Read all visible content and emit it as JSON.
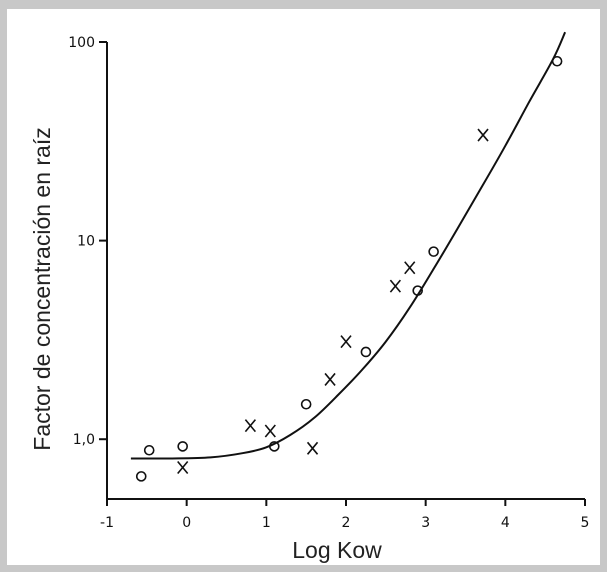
{
  "chart_data": {
    "type": "scatter",
    "xlabel": "Log Kow",
    "ylabel": "Factor de concentración en raíz",
    "xlim": [
      -1,
      5
    ],
    "ylim": [
      0.5,
      100
    ],
    "y_scale": "log",
    "grid": false,
    "x_ticks": [
      "-1",
      "0",
      "1",
      "2",
      "3",
      "4",
      "5"
    ],
    "y_ticks": [
      {
        "value": 1,
        "label": "1,0"
      },
      {
        "value": 10,
        "label": "10"
      },
      {
        "value": 100,
        "label": "100"
      }
    ],
    "series": [
      {
        "marker": "circle",
        "points": [
          {
            "x": -0.57,
            "y": 0.65
          },
          {
            "x": -0.47,
            "y": 0.88
          },
          {
            "x": -0.05,
            "y": 0.92
          },
          {
            "x": 1.1,
            "y": 0.92
          },
          {
            "x": 1.5,
            "y": 1.5
          },
          {
            "x": 2.25,
            "y": 2.75
          },
          {
            "x": 2.9,
            "y": 5.6
          },
          {
            "x": 3.1,
            "y": 8.8
          },
          {
            "x": 4.65,
            "y": 80
          }
        ]
      },
      {
        "marker": "cross",
        "points": [
          {
            "x": -0.05,
            "y": 0.72
          },
          {
            "x": 0.8,
            "y": 1.17
          },
          {
            "x": 1.05,
            "y": 1.1
          },
          {
            "x": 1.58,
            "y": 0.9
          },
          {
            "x": 1.8,
            "y": 2.0
          },
          {
            "x": 2.0,
            "y": 3.1
          },
          {
            "x": 2.62,
            "y": 5.9
          },
          {
            "x": 2.8,
            "y": 7.3
          },
          {
            "x": 3.72,
            "y": 34
          }
        ]
      }
    ],
    "fit_curve": [
      {
        "x": -0.7,
        "y": 0.8
      },
      {
        "x": -0.2,
        "y": 0.8
      },
      {
        "x": 0.3,
        "y": 0.81
      },
      {
        "x": 0.7,
        "y": 0.85
      },
      {
        "x": 1.0,
        "y": 0.91
      },
      {
        "x": 1.3,
        "y": 1.05
      },
      {
        "x": 1.6,
        "y": 1.28
      },
      {
        "x": 1.9,
        "y": 1.67
      },
      {
        "x": 2.2,
        "y": 2.23
      },
      {
        "x": 2.5,
        "y": 3.1
      },
      {
        "x": 2.8,
        "y": 4.6
      },
      {
        "x": 3.1,
        "y": 7.2
      },
      {
        "x": 3.4,
        "y": 11.5
      },
      {
        "x": 3.7,
        "y": 18.5
      },
      {
        "x": 4.0,
        "y": 30
      },
      {
        "x": 4.3,
        "y": 50
      },
      {
        "x": 4.6,
        "y": 82
      },
      {
        "x": 4.75,
        "y": 112
      }
    ]
  }
}
